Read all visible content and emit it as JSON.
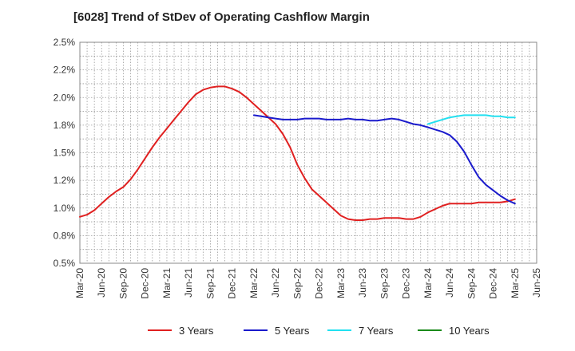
{
  "chart_data": {
    "type": "line",
    "title": "[6028]  Trend of StDev of Operating Cashflow Margin",
    "xlabel": "",
    "ylabel": "",
    "x_ticks": [
      "Mar-20",
      "Jun-20",
      "Sep-20",
      "Dec-20",
      "Mar-21",
      "Jun-21",
      "Sep-21",
      "Dec-21",
      "Mar-22",
      "Jun-22",
      "Sep-22",
      "Dec-22",
      "Mar-23",
      "Jun-23",
      "Sep-23",
      "Dec-23",
      "Mar-24",
      "Jun-24",
      "Sep-24",
      "Dec-24",
      "Mar-25",
      "Jun-25"
    ],
    "y_ticks": [
      "0.5%",
      "0.8%",
      "1.0%",
      "1.2%",
      "1.5%",
      "1.8%",
      "2.0%",
      "2.2%",
      "2.5%"
    ],
    "ylim": [
      0.5,
      2.5
    ],
    "grid": true,
    "legend_position": "bottom",
    "series": [
      {
        "name": "3 Years",
        "color": "#e02020",
        "x": [
          "Mar-20",
          "Apr-20",
          "May-20",
          "Jun-20",
          "Jul-20",
          "Aug-20",
          "Sep-20",
          "Oct-20",
          "Nov-20",
          "Dec-20",
          "Jan-21",
          "Feb-21",
          "Mar-21",
          "Apr-21",
          "May-21",
          "Jun-21",
          "Jul-21",
          "Aug-21",
          "Sep-21",
          "Oct-21",
          "Nov-21",
          "Dec-21",
          "Jan-22",
          "Feb-22",
          "Mar-22",
          "Apr-22",
          "May-22",
          "Jun-22",
          "Jul-22",
          "Aug-22",
          "Sep-22",
          "Oct-22",
          "Nov-22",
          "Dec-22",
          "Jan-23",
          "Feb-23",
          "Mar-23",
          "Apr-23",
          "May-23",
          "Jun-23",
          "Jul-23",
          "Aug-23",
          "Sep-23",
          "Oct-23",
          "Nov-23",
          "Dec-23",
          "Jan-24",
          "Feb-24",
          "Mar-24",
          "Apr-24",
          "May-24",
          "Jun-24",
          "Jul-24",
          "Aug-24",
          "Sep-24",
          "Oct-24",
          "Nov-24",
          "Dec-24",
          "Jan-25",
          "Feb-25",
          "Mar-25"
        ],
        "values": [
          0.92,
          0.94,
          0.98,
          1.04,
          1.1,
          1.15,
          1.19,
          1.26,
          1.35,
          1.45,
          1.55,
          1.64,
          1.72,
          1.8,
          1.88,
          1.96,
          2.03,
          2.07,
          2.09,
          2.1,
          2.1,
          2.08,
          2.05,
          2.0,
          1.94,
          1.88,
          1.82,
          1.76,
          1.67,
          1.55,
          1.39,
          1.27,
          1.17,
          1.11,
          1.05,
          0.99,
          0.93,
          0.9,
          0.89,
          0.89,
          0.9,
          0.9,
          0.91,
          0.91,
          0.91,
          0.9,
          0.9,
          0.92,
          0.96,
          0.99,
          1.02,
          1.04,
          1.04,
          1.04,
          1.04,
          1.05,
          1.05,
          1.05,
          1.05,
          1.06,
          1.08
        ]
      },
      {
        "name": "5 Years",
        "color": "#1a1acc",
        "x": [
          "Mar-22",
          "Apr-22",
          "May-22",
          "Jun-22",
          "Jul-22",
          "Aug-22",
          "Sep-22",
          "Oct-22",
          "Nov-22",
          "Dec-22",
          "Jan-23",
          "Feb-23",
          "Mar-23",
          "Apr-23",
          "May-23",
          "Jun-23",
          "Jul-23",
          "Aug-23",
          "Sep-23",
          "Oct-23",
          "Nov-23",
          "Dec-23",
          "Jan-24",
          "Feb-24",
          "Mar-24",
          "Apr-24",
          "May-24",
          "Jun-24",
          "Jul-24",
          "Aug-24",
          "Sep-24",
          "Oct-24",
          "Nov-24",
          "Dec-24",
          "Jan-25",
          "Feb-25",
          "Mar-25"
        ],
        "values": [
          1.84,
          1.83,
          1.82,
          1.81,
          1.8,
          1.8,
          1.8,
          1.81,
          1.81,
          1.81,
          1.8,
          1.8,
          1.8,
          1.81,
          1.8,
          1.8,
          1.79,
          1.79,
          1.8,
          1.81,
          1.8,
          1.78,
          1.76,
          1.75,
          1.73,
          1.71,
          1.69,
          1.66,
          1.6,
          1.51,
          1.39,
          1.28,
          1.21,
          1.16,
          1.11,
          1.07,
          1.04
        ]
      },
      {
        "name": "7 Years",
        "color": "#22e0f0",
        "x": [
          "Mar-24",
          "Apr-24",
          "May-24",
          "Jun-24",
          "Jul-24",
          "Aug-24",
          "Sep-24",
          "Oct-24",
          "Nov-24",
          "Dec-24",
          "Jan-25",
          "Feb-25",
          "Mar-25"
        ],
        "values": [
          1.76,
          1.78,
          1.8,
          1.82,
          1.83,
          1.84,
          1.84,
          1.84,
          1.84,
          1.83,
          1.83,
          1.82,
          1.82
        ]
      },
      {
        "name": "10 Years",
        "color": "#1a8a1a",
        "x": [],
        "values": []
      }
    ]
  }
}
